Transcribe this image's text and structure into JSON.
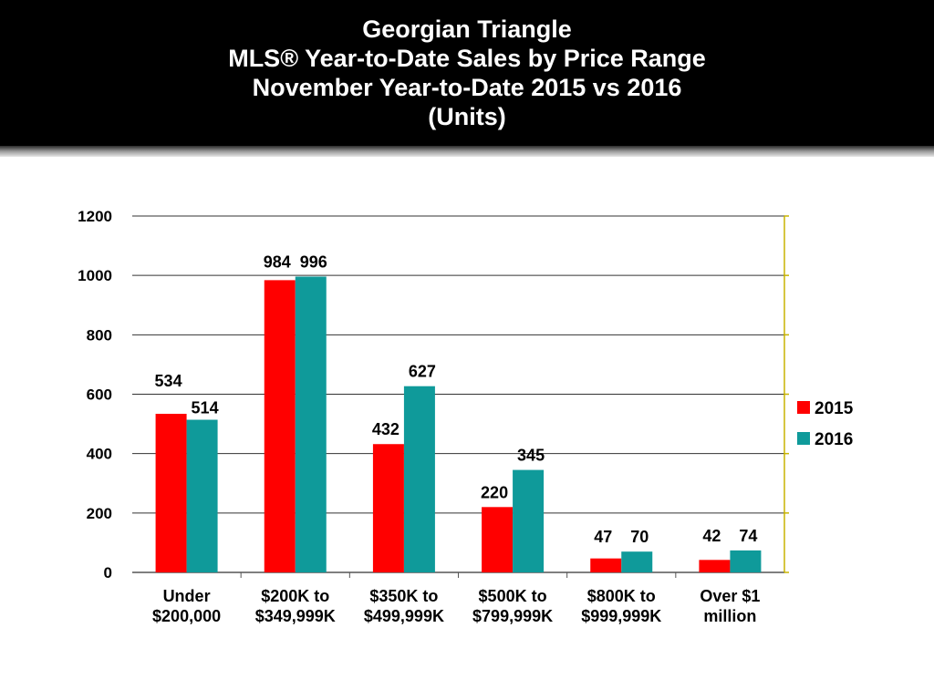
{
  "title_lines": [
    "Georgian Triangle",
    "MLS®  Year-to-Date Sales by Price Range",
    "November Year-to-Date 2015 vs 2016",
    "(Units)"
  ],
  "colors": {
    "header_bg": "#000000",
    "header_text": "#ffffff",
    "series_2015": "#ff0000",
    "series_2016": "#0f9a9a",
    "right_axis": "#c8b400"
  },
  "chart_data": {
    "type": "bar",
    "categories": [
      [
        "Under",
        "$200,000"
      ],
      [
        "$200K to",
        "$349,999K"
      ],
      [
        "$350K to",
        "$499,999K"
      ],
      [
        "$500K to",
        "$799,999K"
      ],
      [
        "$800K to",
        "$999,999K"
      ],
      [
        "Over $1",
        "million"
      ]
    ],
    "series": [
      {
        "name": "2015",
        "values": [
          534,
          984,
          432,
          220,
          47,
          42
        ],
        "color": "#ff0000"
      },
      {
        "name": "2016",
        "values": [
          514,
          996,
          627,
          345,
          70,
          74
        ],
        "color": "#0f9a9a"
      }
    ],
    "yticks": [
      0,
      200,
      400,
      600,
      800,
      1000,
      1200
    ],
    "ylim": [
      0,
      1200
    ],
    "grid": true,
    "legend": "right",
    "data_labels": true
  }
}
